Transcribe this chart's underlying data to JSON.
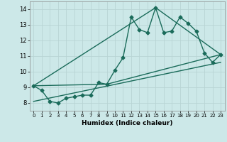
{
  "xlabel": "Humidex (Indice chaleur)",
  "bg_color": "#cce8e8",
  "grid_color": "#b8d4d4",
  "line_color": "#1a6b5a",
  "xlim": [
    -0.5,
    23.5
  ],
  "ylim": [
    7.5,
    14.5
  ],
  "xticks": [
    0,
    1,
    2,
    3,
    4,
    5,
    6,
    7,
    8,
    9,
    10,
    11,
    12,
    13,
    14,
    15,
    16,
    17,
    18,
    19,
    20,
    21,
    22,
    23
  ],
  "yticks": [
    8,
    9,
    10,
    11,
    12,
    13,
    14
  ],
  "series1_x": [
    0,
    1,
    2,
    3,
    4,
    5,
    6,
    7,
    8,
    9,
    10,
    11,
    12,
    13,
    14,
    15,
    16,
    17,
    18,
    19,
    20,
    21,
    22,
    23
  ],
  "series1_y": [
    9.1,
    8.8,
    8.1,
    8.0,
    8.3,
    8.4,
    8.5,
    8.5,
    9.3,
    9.2,
    10.1,
    10.9,
    13.5,
    12.7,
    12.5,
    14.1,
    12.5,
    12.6,
    13.5,
    13.1,
    12.6,
    11.2,
    10.6,
    11.1
  ],
  "series2_x": [
    0,
    15,
    23
  ],
  "series2_y": [
    9.1,
    14.1,
    11.1
  ],
  "series3_x": [
    0,
    23
  ],
  "series3_y": [
    8.1,
    10.6
  ],
  "series4_x": [
    0,
    9,
    23
  ],
  "series4_y": [
    9.1,
    9.2,
    11.1
  ],
  "marker_size": 2.5,
  "line_width": 1.0
}
